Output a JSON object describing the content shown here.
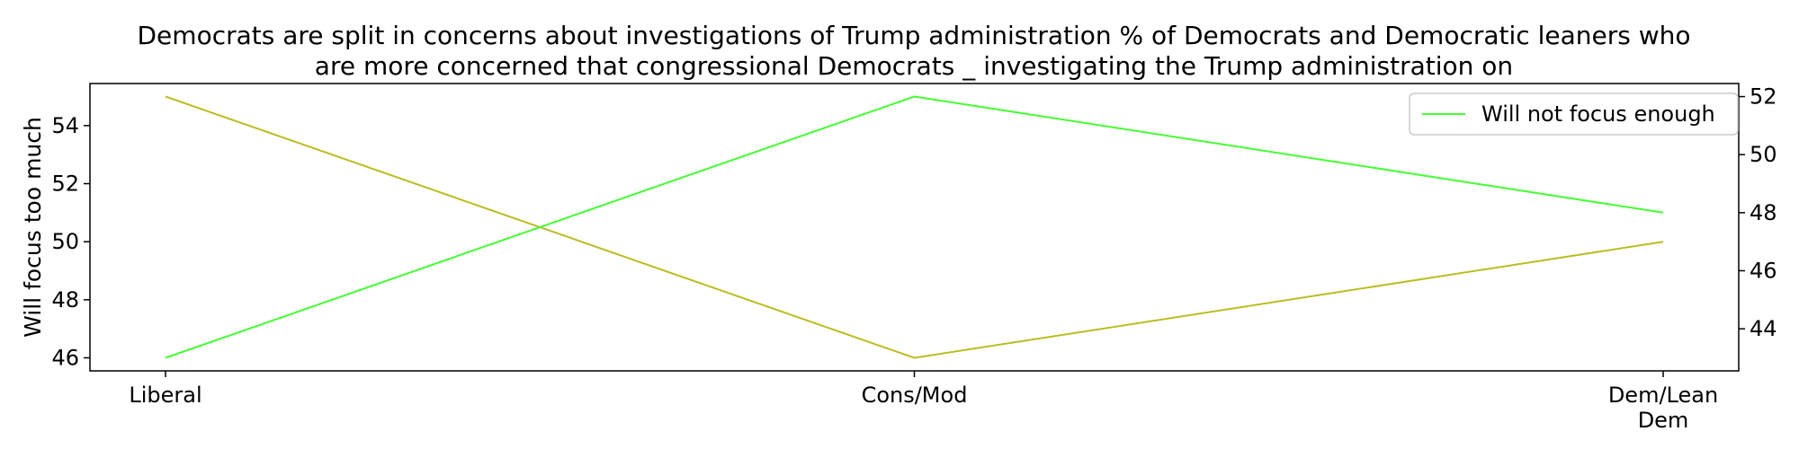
{
  "chart_data": {
    "type": "line",
    "title_lines": [
      "Democrats are split in concerns about investigations of Trump administration % of Democrats and Democratic leaners who",
      "are more concerned that congressional Democrats _ investigating the Trump administration on"
    ],
    "categories": [
      "Liberal",
      "Cons/Mod",
      "Dem/Lean Dem"
    ],
    "category_labels": [
      [
        "Liberal"
      ],
      [
        "Cons/Mod"
      ],
      [
        "Dem/Lean",
        "Dem"
      ]
    ],
    "series": [
      {
        "name": "Will focus too much",
        "axis": "left",
        "color": "#bcbd22",
        "values": [
          55,
          46,
          50
        ]
      },
      {
        "name": "Will not focus enough",
        "axis": "right",
        "color": "#44ff33",
        "values": [
          43,
          52,
          48
        ]
      }
    ],
    "ylabel_left": "Will focus too much",
    "ylabel_right": "",
    "ylim_left": [
      45.55,
      55.45
    ],
    "ylim_right": [
      42.55,
      52.45
    ],
    "yticks_left": [
      "46",
      "48",
      "50",
      "52",
      "54"
    ],
    "yticks_right": [
      "44",
      "46",
      "48",
      "50",
      "52"
    ],
    "legend": {
      "placement": "top-right",
      "entries": [
        "Will not focus enough"
      ]
    },
    "grid": false
  }
}
